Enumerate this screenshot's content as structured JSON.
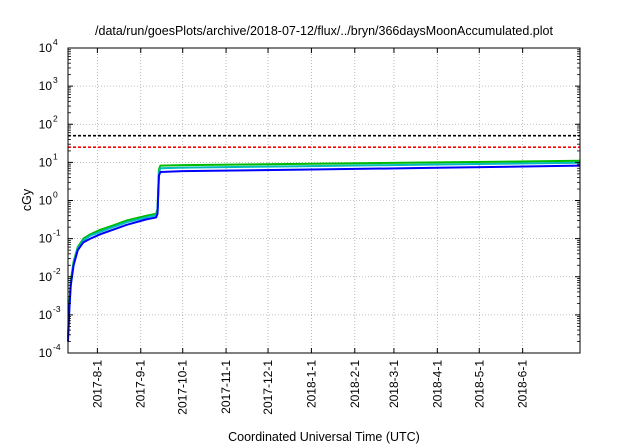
{
  "chart_data": {
    "type": "line",
    "title": "/data/run/goesPlots/archive/2018-07-12/flux/../bryn/366daysMoonAccumulated.plot",
    "xlabel": "Coordinated Universal Time (UTC)",
    "ylabel": "cGy",
    "y_scale": "log",
    "ylim": [
      0.0001,
      10000
    ],
    "xlim": [
      "2017-07-11",
      "2018-07-12"
    ],
    "y_ticks": [
      {
        "base": "10",
        "exp": "-4"
      },
      {
        "base": "10",
        "exp": "-3"
      },
      {
        "base": "10",
        "exp": "-2"
      },
      {
        "base": "10",
        "exp": "-1"
      },
      {
        "base": "10",
        "exp": "0"
      },
      {
        "base": "10",
        "exp": "1"
      },
      {
        "base": "10",
        "exp": "2"
      },
      {
        "base": "10",
        "exp": "3"
      },
      {
        "base": "10",
        "exp": "4"
      }
    ],
    "x_ticks": [
      {
        "label": "2017-8-1",
        "date": "2017-08-01"
      },
      {
        "label": "2017-9-1",
        "date": "2017-09-01"
      },
      {
        "label": "2017-10-1",
        "date": "2017-10-01"
      },
      {
        "label": "2017-11-1",
        "date": "2017-11-01"
      },
      {
        "label": "2017-12-1",
        "date": "2017-12-01"
      },
      {
        "label": "2018-1-1",
        "date": "2018-01-01"
      },
      {
        "label": "2018-2-1",
        "date": "2018-02-01"
      },
      {
        "label": "2018-3-1",
        "date": "2018-03-01"
      },
      {
        "label": "2018-4-1",
        "date": "2018-04-01"
      },
      {
        "label": "2018-5-1",
        "date": "2018-05-01"
      },
      {
        "label": "2018-6-1",
        "date": "2018-06-01"
      }
    ],
    "grid": true,
    "reference_lines": [
      {
        "y": 50,
        "color": "#000000",
        "style": "dashed"
      },
      {
        "y": 25,
        "color": "#ff0000",
        "style": "dashed"
      }
    ],
    "series": [
      {
        "color": "#00bb00",
        "x": [
          "2017-07-11",
          "2017-07-12",
          "2017-07-13",
          "2017-07-15",
          "2017-07-18",
          "2017-07-22",
          "2017-07-27",
          "2017-08-03",
          "2017-08-12",
          "2017-08-22",
          "2017-09-05",
          "2017-09-12",
          "2017-09-13",
          "2017-09-14",
          "2017-09-15",
          "2017-10-01",
          "2018-01-01",
          "2018-04-01",
          "2018-07-12"
        ],
        "values": [
          0.0003,
          0.002,
          0.008,
          0.025,
          0.06,
          0.1,
          0.13,
          0.17,
          0.22,
          0.3,
          0.4,
          0.45,
          0.6,
          6.5,
          8.2,
          8.5,
          9.2,
          10.0,
          11.0
        ]
      },
      {
        "color": "#00bbbb",
        "x": [
          "2017-07-11",
          "2017-07-12",
          "2017-07-13",
          "2017-07-15",
          "2017-07-18",
          "2017-07-22",
          "2017-07-27",
          "2017-08-03",
          "2017-08-12",
          "2017-08-22",
          "2017-09-05",
          "2017-09-12",
          "2017-09-13",
          "2017-09-14",
          "2017-09-15",
          "2017-10-01",
          "2018-01-01",
          "2018-04-01",
          "2018-07-12"
        ],
        "values": [
          0.00025,
          0.0017,
          0.007,
          0.022,
          0.055,
          0.09,
          0.12,
          0.15,
          0.2,
          0.27,
          0.36,
          0.41,
          0.5,
          5.5,
          7.0,
          7.3,
          8.0,
          8.8,
          9.8
        ]
      },
      {
        "color": "#0000ff",
        "x": [
          "2017-07-11",
          "2017-07-12",
          "2017-07-13",
          "2017-07-15",
          "2017-07-18",
          "2017-07-22",
          "2017-07-27",
          "2017-08-03",
          "2017-08-12",
          "2017-08-22",
          "2017-09-05",
          "2017-09-12",
          "2017-09-13",
          "2017-09-14",
          "2017-09-15",
          "2017-10-01",
          "2018-01-01",
          "2018-04-01",
          "2018-07-12"
        ],
        "values": [
          0.0002,
          0.0015,
          0.006,
          0.02,
          0.05,
          0.08,
          0.1,
          0.13,
          0.17,
          0.23,
          0.32,
          0.36,
          0.45,
          4.5,
          5.6,
          5.9,
          6.5,
          7.2,
          8.2
        ]
      }
    ]
  }
}
